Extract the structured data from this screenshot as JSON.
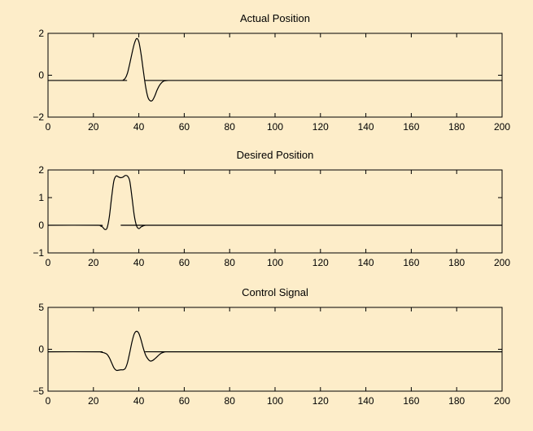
{
  "colors": {
    "background": "#fdedc9",
    "line": "#000000"
  },
  "chart_data": [
    {
      "type": "line",
      "title": "Actual Position",
      "xlabel": "",
      "ylabel": "",
      "xlim": [
        0,
        200
      ],
      "ylim": [
        -2,
        2
      ],
      "xticks": [
        0,
        20,
        40,
        60,
        80,
        100,
        120,
        140,
        160,
        180,
        200
      ],
      "yticks": [
        -2,
        0,
        2
      ],
      "grid": false,
      "series": [
        {
          "x": [
            0,
            32,
            33,
            34,
            35,
            36,
            37,
            38,
            39,
            40,
            41,
            42,
            43,
            44,
            45,
            46,
            47,
            48,
            49,
            50,
            51,
            52,
            53,
            54,
            200
          ],
          "y": [
            -0.25,
            -0.25,
            -0.24,
            -0.15,
            0.1,
            0.55,
            1.05,
            1.5,
            1.75,
            1.6,
            1.0,
            0.2,
            -0.55,
            -1.05,
            -1.22,
            -1.2,
            -1.0,
            -0.72,
            -0.5,
            -0.36,
            -0.28,
            -0.26,
            -0.25,
            -0.25,
            -0.25
          ]
        }
      ]
    },
    {
      "type": "line",
      "title": "Desired Position",
      "xlabel": "",
      "ylabel": "",
      "xlim": [
        0,
        200
      ],
      "ylim": [
        -1,
        2
      ],
      "xticks": [
        0,
        20,
        40,
        60,
        80,
        100,
        120,
        140,
        160,
        180,
        200
      ],
      "yticks": [
        -1,
        0,
        1,
        2
      ],
      "grid": false,
      "series": [
        {
          "x": [
            0,
            22,
            23,
            24,
            25,
            26,
            27,
            28,
            29,
            30,
            31,
            32,
            33,
            34,
            35,
            36,
            37,
            38,
            39,
            40,
            41,
            42,
            43,
            44,
            200
          ],
          "y": [
            0,
            0,
            -0.02,
            -0.06,
            -0.15,
            -0.1,
            0.3,
            1.0,
            1.6,
            1.78,
            1.75,
            1.72,
            1.74,
            1.8,
            1.78,
            1.6,
            1.0,
            0.35,
            -0.02,
            -0.12,
            -0.06,
            -0.02,
            0,
            0,
            0
          ]
        }
      ]
    },
    {
      "type": "line",
      "title": "Control Signal",
      "xlabel": "",
      "ylabel": "",
      "xlim": [
        0,
        200
      ],
      "ylim": [
        -5,
        5
      ],
      "xticks": [
        0,
        20,
        40,
        60,
        80,
        100,
        120,
        140,
        160,
        180,
        200
      ],
      "yticks": [
        -5,
        0,
        5
      ],
      "grid": false,
      "series": [
        {
          "x": [
            0,
            22,
            23,
            24,
            25,
            26,
            27,
            28,
            29,
            30,
            31,
            32,
            33,
            34,
            35,
            36,
            37,
            38,
            39,
            40,
            41,
            42,
            43,
            44,
            45,
            46,
            47,
            48,
            49,
            50,
            51,
            52,
            53,
            54,
            200
          ],
          "y": [
            -0.3,
            -0.3,
            -0.32,
            -0.38,
            -0.45,
            -0.6,
            -1.0,
            -1.6,
            -2.2,
            -2.5,
            -2.5,
            -2.45,
            -2.45,
            -2.3,
            -1.6,
            -0.4,
            0.9,
            1.85,
            2.15,
            1.9,
            1.1,
            0.1,
            -0.7,
            -1.15,
            -1.4,
            -1.35,
            -1.15,
            -0.9,
            -0.65,
            -0.45,
            -0.35,
            -0.31,
            -0.3,
            -0.3,
            -0.3
          ]
        }
      ]
    }
  ]
}
